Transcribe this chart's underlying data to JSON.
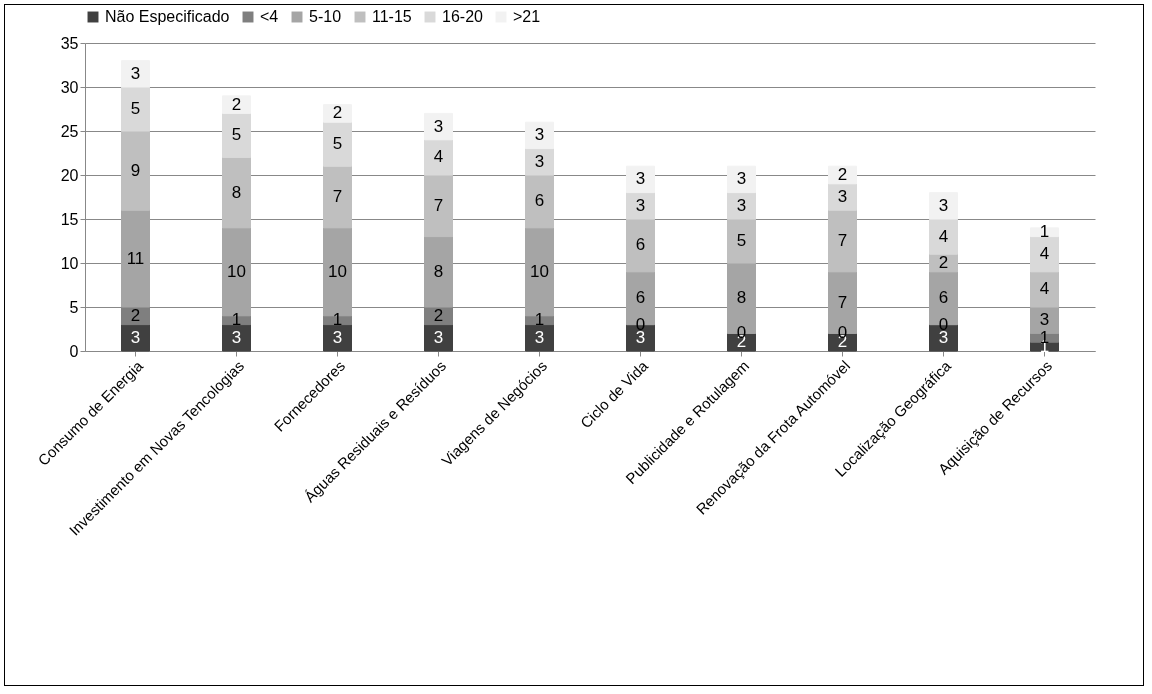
{
  "chart_data": {
    "type": "bar",
    "stacked": true,
    "categories": [
      "Consumo de Energia",
      "Investimento em Novas Tencologias",
      "Fornecedores",
      "Águas Residuais e Resíduos",
      "Viagens de Negócios",
      "Ciclo de Vida",
      "Publicidade e Rotulagem",
      "Renovação da Frota Automóvel",
      "Localização Geográfica",
      "Aquisição de Recursos"
    ],
    "series": [
      {
        "name": "Não Especificado",
        "color": "#404040",
        "values": [
          3,
          3,
          3,
          3,
          3,
          3,
          2,
          2,
          3,
          1
        ]
      },
      {
        "name": "<4",
        "color": "#7f7f7f",
        "values": [
          2,
          1,
          1,
          2,
          1,
          0,
          0,
          0,
          0,
          1
        ],
        "value_labels": [
          "2",
          "1",
          "1",
          "2",
          "1",
          "0",
          "0",
          "0",
          "0",
          "1"
        ]
      },
      {
        "name": "5-10",
        "color": "#a5a5a5",
        "values": [
          11,
          10,
          10,
          8,
          10,
          6,
          8,
          7,
          6,
          3
        ]
      },
      {
        "name": "11-15",
        "color": "#bfbfbf",
        "values": [
          9,
          8,
          7,
          7,
          6,
          6,
          5,
          7,
          2,
          4
        ]
      },
      {
        "name": "16-20",
        "color": "#d9d9d9",
        "values": [
          5,
          5,
          5,
          4,
          3,
          3,
          3,
          3,
          4,
          4
        ]
      },
      {
        "name": ">21",
        "color": "#f2f2f2",
        "values": [
          3,
          2,
          2,
          3,
          3,
          3,
          3,
          2,
          3,
          1
        ]
      }
    ],
    "ylim": [
      0,
      35
    ],
    "yticks": [
      0,
      5,
      10,
      15,
      20,
      25,
      30,
      35
    ],
    "grid": "y",
    "legend": "top",
    "data_labels": true
  }
}
